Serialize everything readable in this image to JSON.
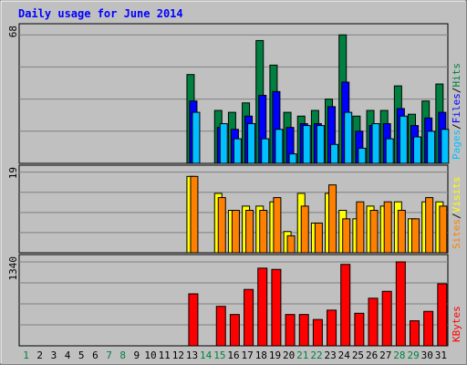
{
  "chart_data": {
    "type": "bar",
    "title": "Daily usage for June 2014",
    "colors": {
      "hits": "#008040",
      "files": "#0000ff",
      "pages": "#00c0ff",
      "visits": "#ffff00",
      "sites": "#ff8000",
      "kbytes": "#ff0000",
      "weekend_label": "#008040",
      "weekday_label": "#000000",
      "background": "#c0c0c0",
      "plot_bg": "#c0c0c0",
      "title": "#0000ff"
    },
    "days": [
      "1",
      "2",
      "3",
      "4",
      "5",
      "6",
      "7",
      "8",
      "9",
      "10",
      "11",
      "12",
      "13",
      "14",
      "15",
      "16",
      "17",
      "18",
      "19",
      "20",
      "21",
      "22",
      "23",
      "24",
      "25",
      "26",
      "27",
      "28",
      "29",
      "30",
      "31"
    ],
    "weekend_days": [
      "1",
      "7",
      "8",
      "14",
      "15",
      "21",
      "22",
      "28",
      "29"
    ],
    "panel1": {
      "ymax_label": "68",
      "ymax": 68,
      "legend": [
        "Pages",
        "/",
        "Files",
        "/",
        "Hits"
      ],
      "series": [
        {
          "name": "Hits",
          "values": [
            0,
            0,
            0,
            0,
            0,
            0,
            0,
            0,
            0,
            0,
            0,
            0,
            47,
            0,
            28,
            27,
            32,
            65,
            52,
            27,
            25,
            28,
            34,
            68,
            25,
            28,
            28,
            41,
            26,
            33,
            42
          ]
        },
        {
          "name": "Files",
          "values": [
            0,
            0,
            0,
            0,
            0,
            0,
            0,
            0,
            0,
            0,
            0,
            0,
            33,
            0,
            19,
            18,
            25,
            36,
            38,
            19,
            21,
            21,
            30,
            43,
            17,
            20,
            21,
            29,
            20,
            24,
            27
          ]
        },
        {
          "name": "Pages",
          "values": [
            0,
            0,
            0,
            0,
            0,
            0,
            0,
            0,
            0,
            0,
            0,
            0,
            27,
            0,
            21,
            13,
            21,
            13,
            18,
            5,
            20,
            20,
            10,
            27,
            8,
            21,
            13,
            25,
            14,
            17,
            18
          ]
        }
      ]
    },
    "panel2": {
      "ymax_label": "19",
      "ymax": 19,
      "legend": [
        "Sites",
        "/",
        "Visits"
      ],
      "series": [
        {
          "name": "Visits",
          "values": [
            0,
            0,
            0,
            0,
            0,
            0,
            0,
            0,
            0,
            0,
            0,
            0,
            18,
            0,
            14,
            10,
            11,
            11,
            12,
            5,
            14,
            7,
            14,
            10,
            8,
            11,
            11,
            12,
            8,
            12,
            12
          ]
        },
        {
          "name": "Sites",
          "values": [
            0,
            0,
            0,
            0,
            0,
            0,
            0,
            0,
            0,
            0,
            0,
            0,
            18,
            0,
            13,
            10,
            10,
            10,
            13,
            4,
            11,
            7,
            16,
            8,
            12,
            10,
            12,
            10,
            8,
            13,
            11
          ]
        }
      ]
    },
    "panel3": {
      "ymax_label": "1340",
      "ymax": 1340,
      "legend": [
        "KBytes"
      ],
      "series": [
        {
          "name": "KBytes",
          "values": [
            0,
            0,
            0,
            0,
            0,
            0,
            0,
            0,
            0,
            0,
            0,
            0,
            830,
            0,
            630,
            500,
            900,
            1240,
            1220,
            500,
            500,
            420,
            570,
            1300,
            520,
            760,
            870,
            1340,
            400,
            550,
            990
          ]
        }
      ]
    }
  }
}
